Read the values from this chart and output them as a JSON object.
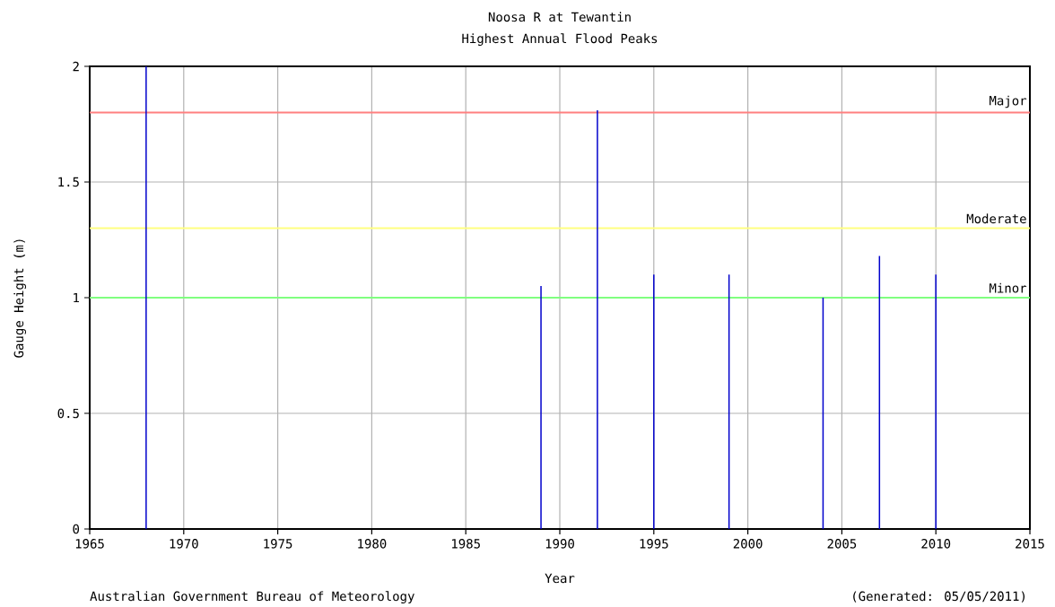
{
  "chart_data": {
    "type": "bar",
    "title": "Noosa R at Tewantin",
    "subtitle": "Highest Annual Flood Peaks",
    "xlabel": "Year",
    "ylabel": "Gauge Height (m)",
    "x": [
      1968,
      1989,
      1992,
      1995,
      1999,
      2004,
      2007,
      2010
    ],
    "values": [
      2.0,
      1.05,
      1.81,
      1.1,
      1.1,
      1.0,
      1.18,
      1.1
    ],
    "color": "#0000cc",
    "xlim": [
      1965,
      2015
    ],
    "xticks": [
      1965,
      1970,
      1975,
      1980,
      1985,
      1990,
      1995,
      2000,
      2005,
      2010,
      2015
    ],
    "ylim": [
      0,
      2
    ],
    "yticks": [
      0,
      0.5,
      1,
      1.5,
      2
    ],
    "grid": true,
    "ref_lines": [
      {
        "axis": "y",
        "value": 1.8,
        "label": "Major",
        "color": "#ff8080"
      },
      {
        "axis": "y",
        "value": 1.3,
        "label": "Moderate",
        "color": "#ffff80"
      },
      {
        "axis": "y",
        "value": 1.0,
        "label": "Minor",
        "color": "#80ff80"
      }
    ],
    "annotations": [
      "Australian Government Bureau of Meteorology",
      "(Generated: 05/05/2011)"
    ]
  }
}
